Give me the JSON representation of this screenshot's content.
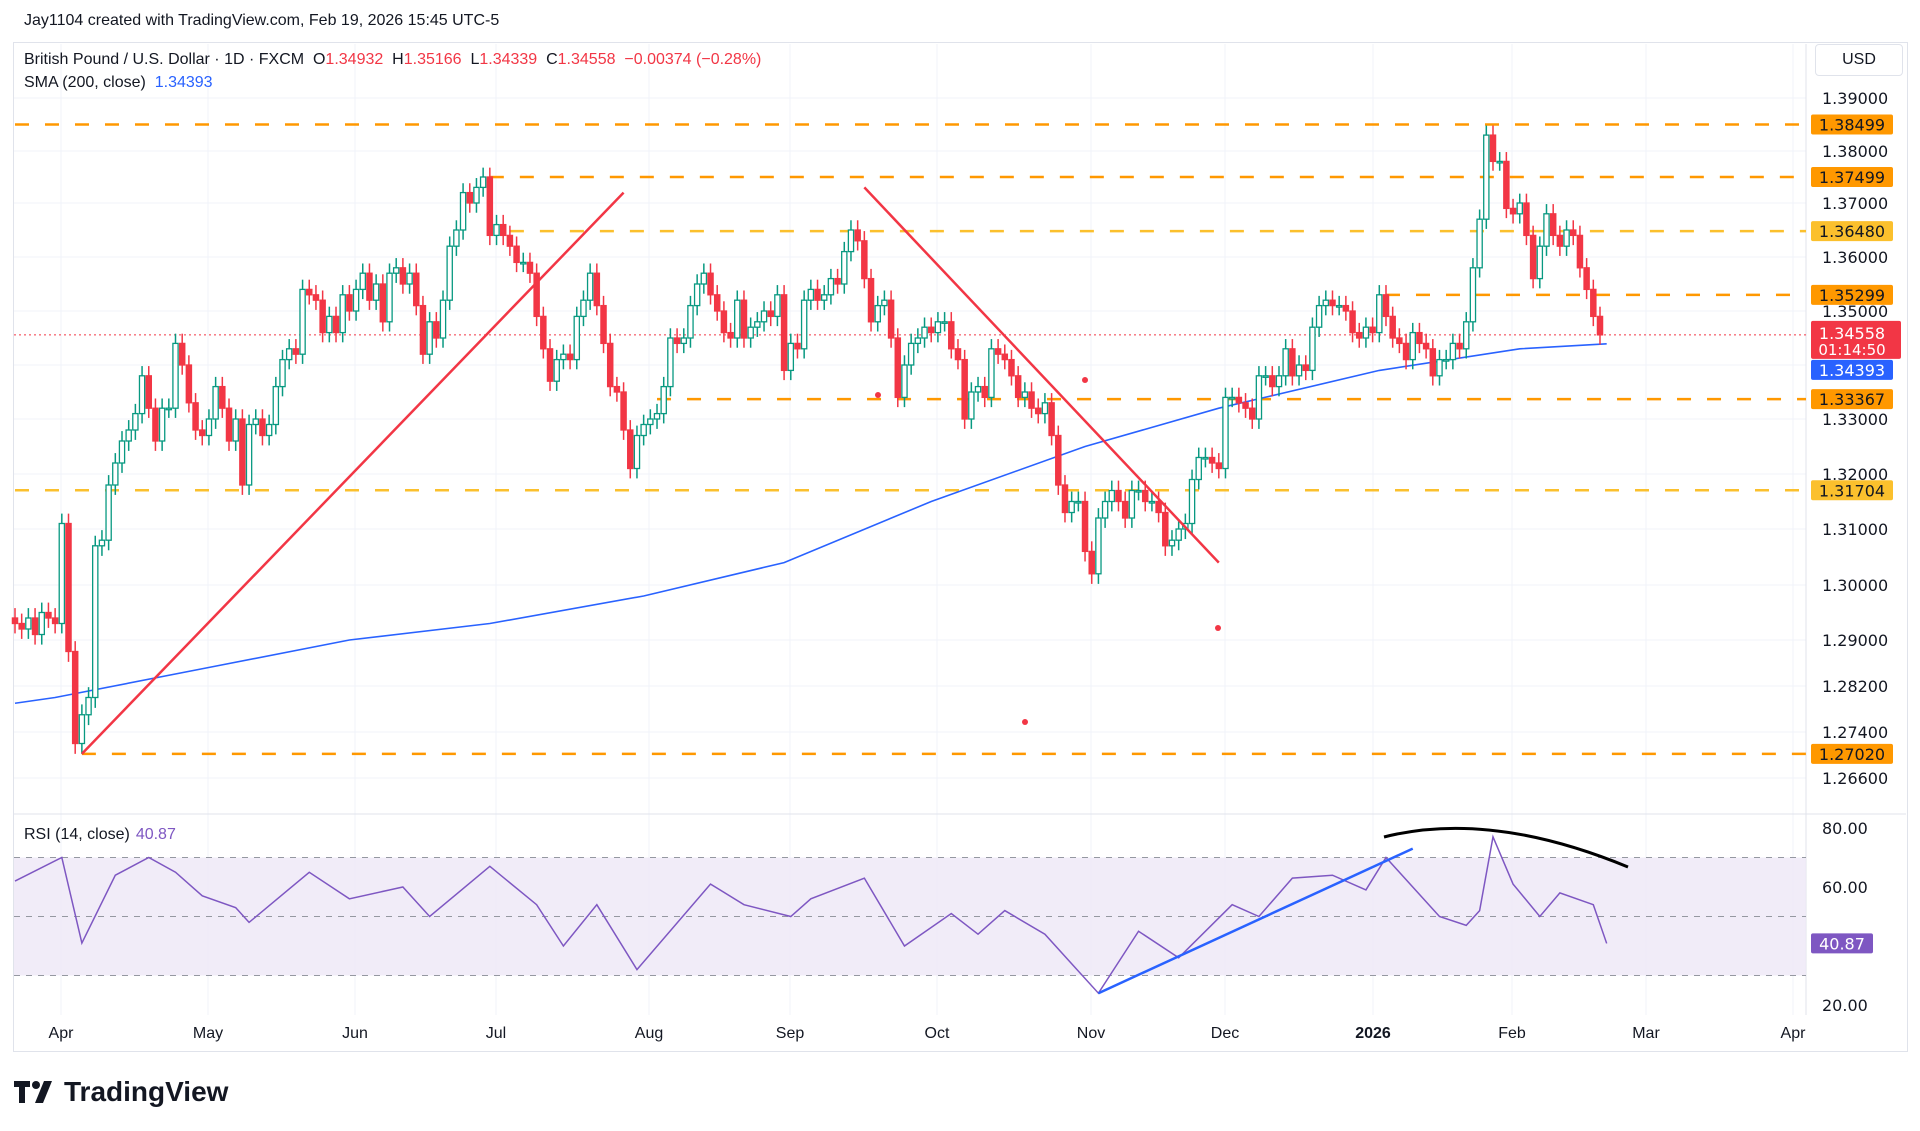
{
  "credit": "Jay1104 created with TradingView.com, Feb 19, 2026 15:45 UTC-5",
  "legend": {
    "symbol": "British Pound / U.S. Dollar · 1D · FXCM",
    "o_label": "O",
    "o": "1.34932",
    "h_label": "H",
    "h": "1.35166",
    "l_label": "L",
    "l": "1.34339",
    "c_label": "C",
    "c": "1.34558",
    "change": "−0.00374 (−0.28%)",
    "sma_label": "SMA (200, close)",
    "sma_value": "1.34393"
  },
  "rsi_legend": {
    "label": "RSI (14, close)",
    "value": "40.87"
  },
  "currency": "USD",
  "brand": "TradingView",
  "colors": {
    "up": "#089981",
    "down": "#f23645",
    "sma": "#2962ff",
    "level_orange": "#ff9800",
    "level_yellow": "#fbc02d",
    "rsi": "#7e57c2",
    "rsi_band": "#ede7f6",
    "last_price": "#f23645",
    "countdown": "01:14:50"
  },
  "chart_data": [
    {
      "type": "candlestick",
      "title": "British Pound / U.S. Dollar",
      "y_ticks": [
        "1.39000",
        "1.38000",
        "1.37000",
        "1.36000",
        "1.35000",
        "1.33000",
        "1.32000",
        "1.31000",
        "1.30000",
        "1.29000",
        "1.28200",
        "1.27400",
        "1.26600"
      ],
      "x_ticks": [
        "Apr",
        "May",
        "Jun",
        "Jul",
        "Aug",
        "Sep",
        "Oct",
        "Nov",
        "Dec",
        "2026",
        "Feb",
        "Mar",
        "Apr"
      ],
      "first_date": "2025-03-24",
      "last_date": "2026-02-19",
      "close": [
        1.293,
        1.292,
        1.294,
        1.291,
        1.295,
        1.294,
        1.293,
        1.311,
        1.288,
        1.272,
        1.277,
        1.28,
        1.307,
        1.308,
        1.318,
        1.322,
        1.326,
        1.328,
        1.331,
        1.338,
        1.332,
        1.326,
        1.332,
        1.332,
        1.344,
        1.34,
        1.333,
        1.328,
        1.327,
        1.33,
        1.336,
        1.332,
        1.326,
        1.33,
        1.318,
        1.329,
        1.33,
        1.327,
        1.329,
        1.336,
        1.341,
        1.343,
        1.342,
        1.354,
        1.353,
        1.352,
        1.346,
        1.349,
        1.346,
        1.353,
        1.35,
        1.354,
        1.357,
        1.352,
        1.355,
        1.348,
        1.357,
        1.358,
        1.355,
        1.357,
        1.351,
        1.342,
        1.348,
        1.345,
        1.352,
        1.362,
        1.365,
        1.372,
        1.37,
        1.373,
        1.375,
        1.364,
        1.366,
        1.364,
        1.362,
        1.359,
        1.359,
        1.357,
        1.349,
        1.343,
        1.337,
        1.341,
        1.342,
        1.341,
        1.349,
        1.352,
        1.357,
        1.351,
        1.344,
        1.336,
        1.335,
        1.328,
        1.321,
        1.327,
        1.329,
        1.33,
        1.331,
        1.336,
        1.345,
        1.344,
        1.345,
        1.351,
        1.355,
        1.357,
        1.353,
        1.35,
        1.346,
        1.345,
        1.352,
        1.345,
        1.347,
        1.348,
        1.35,
        1.349,
        1.353,
        1.339,
        1.344,
        1.343,
        1.352,
        1.354,
        1.352,
        1.353,
        1.356,
        1.355,
        1.361,
        1.365,
        1.363,
        1.356,
        1.348,
        1.351,
        1.352,
        1.345,
        1.334,
        1.34,
        1.344,
        1.345,
        1.347,
        1.346,
        1.348,
        1.348,
        1.343,
        1.341,
        1.33,
        1.335,
        1.336,
        1.334,
        1.343,
        1.342,
        1.341,
        1.338,
        1.334,
        1.335,
        1.332,
        1.331,
        1.333,
        1.327,
        1.318,
        1.313,
        1.315,
        1.315,
        1.306,
        1.302,
        1.312,
        1.315,
        1.317,
        1.315,
        1.312,
        1.317,
        1.317,
        1.315,
        1.315,
        1.313,
        1.307,
        1.308,
        1.31,
        1.311,
        1.319,
        1.323,
        1.323,
        1.322,
        1.321,
        1.334,
        1.334,
        1.333,
        1.332,
        1.33,
        1.338,
        1.338,
        1.336,
        1.338,
        1.343,
        1.338,
        1.34,
        1.339,
        1.347,
        1.351,
        1.352,
        1.351,
        1.351,
        1.35,
        1.346,
        1.345,
        1.347,
        1.346,
        1.353,
        1.349,
        1.345,
        1.344,
        1.341,
        1.346,
        1.344,
        1.343,
        1.338,
        1.341,
        1.341,
        1.344,
        1.343,
        1.348,
        1.358,
        1.367,
        1.383,
        1.378,
        1.378,
        1.369,
        1.368,
        1.37,
        1.364,
        1.356,
        1.362,
        1.368,
        1.364,
        1.362,
        1.365,
        1.364,
        1.358,
        1.354,
        1.349,
        1.34558
      ],
      "sma200": [
        [
          "2025-03-24",
          1.279
        ],
        [
          "2025-04-01",
          1.28
        ],
        [
          "2025-05-01",
          1.285
        ],
        [
          "2025-06-02",
          1.29
        ],
        [
          "2025-07-01",
          1.293
        ],
        [
          "2025-08-01",
          1.298
        ],
        [
          "2025-09-01",
          1.304
        ],
        [
          "2025-10-01",
          1.315
        ],
        [
          "2025-11-03",
          1.325
        ],
        [
          "2025-12-01",
          1.332
        ],
        [
          "2026-01-02",
          1.339
        ],
        [
          "2026-02-02",
          1.343
        ],
        [
          "2026-02-19",
          1.34393
        ]
      ],
      "levels": [
        {
          "price": "1.38499",
          "color": "orange",
          "from": "2025-03-24"
        },
        {
          "price": "1.37499",
          "color": "orange",
          "from": "2025-07-01"
        },
        {
          "price": "1.36480",
          "color": "yellow",
          "from": "2025-07-04"
        },
        {
          "price": "1.35299",
          "color": "orange",
          "from": "2026-01-05"
        },
        {
          "price": "1.33367",
          "color": "orange",
          "from": "2025-08-05"
        },
        {
          "price": "1.31704",
          "color": "yellow",
          "from": "2025-03-24"
        },
        {
          "price": "1.27020",
          "color": "orange",
          "from": "2025-04-07"
        }
      ],
      "last_price": "1.34558",
      "sma_last": "1.34393",
      "trendlines": [
        {
          "color": "red",
          "from": [
            "2025-04-07",
            1.2702
          ],
          "to": [
            "2025-07-29",
            1.372
          ]
        },
        {
          "color": "red",
          "from": [
            "2025-09-17",
            1.373
          ],
          "to": [
            "2025-12-01",
            1.304
          ]
        }
      ]
    },
    {
      "type": "line",
      "title": "RSI (14, close)",
      "y_ticks": [
        "80.00",
        "60.00",
        "20.00"
      ],
      "bands": [
        30,
        50,
        70
      ],
      "ylim": [
        20,
        80
      ],
      "last": "40.87",
      "values": [
        [
          "2025-03-24",
          62
        ],
        [
          "2025-04-02",
          70
        ],
        [
          "2025-04-07",
          41
        ],
        [
          "2025-04-14",
          64
        ],
        [
          "2025-04-21",
          70
        ],
        [
          "2025-04-25",
          65
        ],
        [
          "2025-05-01",
          57
        ],
        [
          "2025-05-08",
          53
        ],
        [
          "2025-05-12",
          48
        ],
        [
          "2025-05-23",
          65
        ],
        [
          "2025-06-02",
          56
        ],
        [
          "2025-06-12",
          60
        ],
        [
          "2025-06-18",
          50
        ],
        [
          "2025-07-01",
          67
        ],
        [
          "2025-07-10",
          54
        ],
        [
          "2025-07-16",
          40
        ],
        [
          "2025-07-23",
          54
        ],
        [
          "2025-07-31",
          32
        ],
        [
          "2025-08-15",
          61
        ],
        [
          "2025-08-22",
          54
        ],
        [
          "2025-09-02",
          50
        ],
        [
          "2025-09-05",
          56
        ],
        [
          "2025-09-17",
          63
        ],
        [
          "2025-09-25",
          40
        ],
        [
          "2025-10-06",
          51
        ],
        [
          "2025-10-10",
          44
        ],
        [
          "2025-10-16",
          52
        ],
        [
          "2025-10-24",
          44
        ],
        [
          "2025-10-30",
          34
        ],
        [
          "2025-11-05",
          24
        ],
        [
          "2025-11-13",
          45
        ],
        [
          "2025-11-21",
          36
        ],
        [
          "2025-12-03",
          54
        ],
        [
          "2025-12-09",
          50
        ],
        [
          "2025-12-16",
          63
        ],
        [
          "2025-12-24",
          64
        ],
        [
          "2025-12-31",
          59
        ],
        [
          "2026-01-05",
          70
        ],
        [
          "2026-01-15",
          50
        ],
        [
          "2026-01-21",
          47
        ],
        [
          "2026-01-23",
          52
        ],
        [
          "2026-01-27",
          77
        ],
        [
          "2026-01-30",
          61
        ],
        [
          "2026-02-05",
          50
        ],
        [
          "2026-02-10",
          58
        ],
        [
          "2026-02-17",
          54
        ],
        [
          "2026-02-19",
          40.87
        ]
      ],
      "trendline": {
        "color": "blue",
        "from": [
          "2025-11-05",
          24
        ],
        "to": [
          "2026-01-09",
          73
        ]
      }
    }
  ]
}
